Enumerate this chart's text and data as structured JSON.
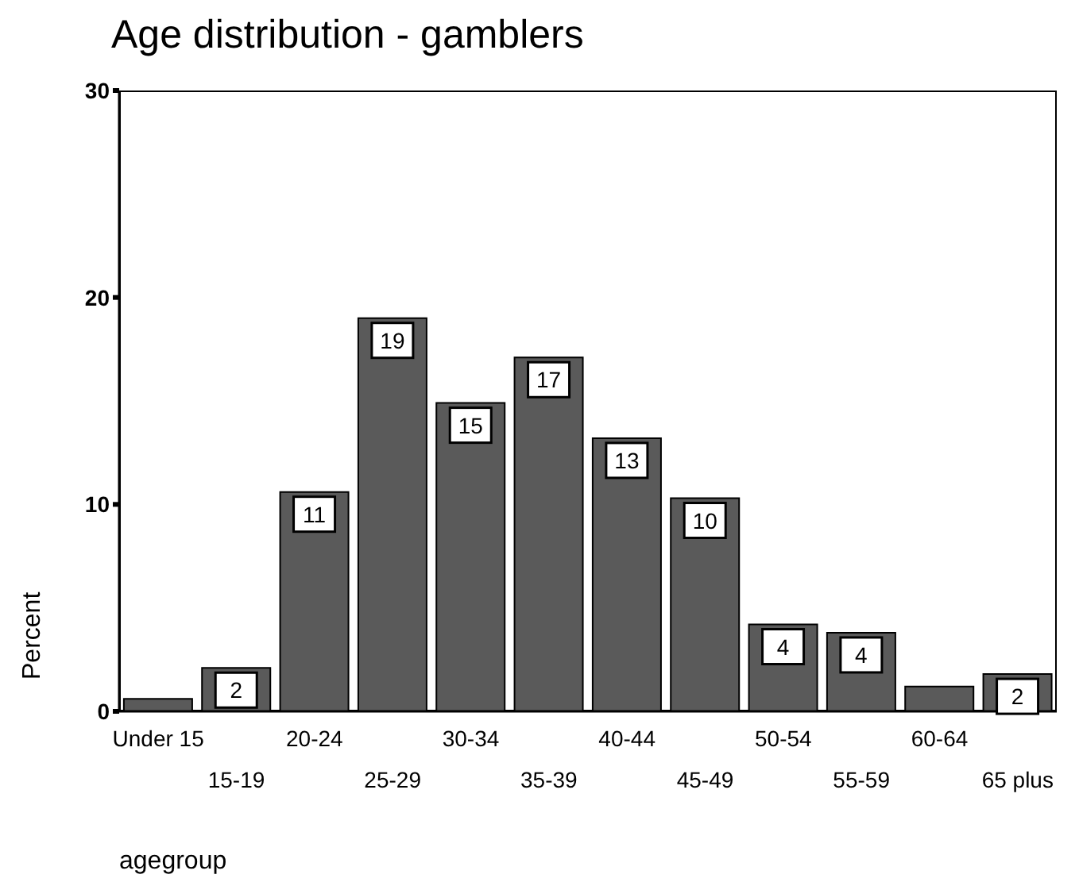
{
  "chart_data": {
    "type": "bar",
    "title": "Age distribution - gamblers",
    "xlabel": "agegroup",
    "ylabel": "Percent",
    "categories": [
      "Under 15",
      "15-19",
      "20-24",
      "25-29",
      "30-34",
      "35-39",
      "40-44",
      "45-49",
      "50-54",
      "55-59",
      "60-64",
      "65 plus"
    ],
    "values": [
      0.6,
      2.1,
      10.6,
      19,
      14.9,
      17.1,
      13.2,
      10.3,
      4.2,
      3.8,
      1.2,
      1.8
    ],
    "value_labels": [
      null,
      "2",
      "11",
      "19",
      "15",
      "17",
      "13",
      "10",
      "4",
      "4",
      null,
      "2"
    ],
    "color": "#5a5a5a",
    "ylim": [
      0,
      30
    ],
    "yticks": [
      0,
      10,
      20,
      30
    ],
    "grid": false,
    "legend": false
  }
}
